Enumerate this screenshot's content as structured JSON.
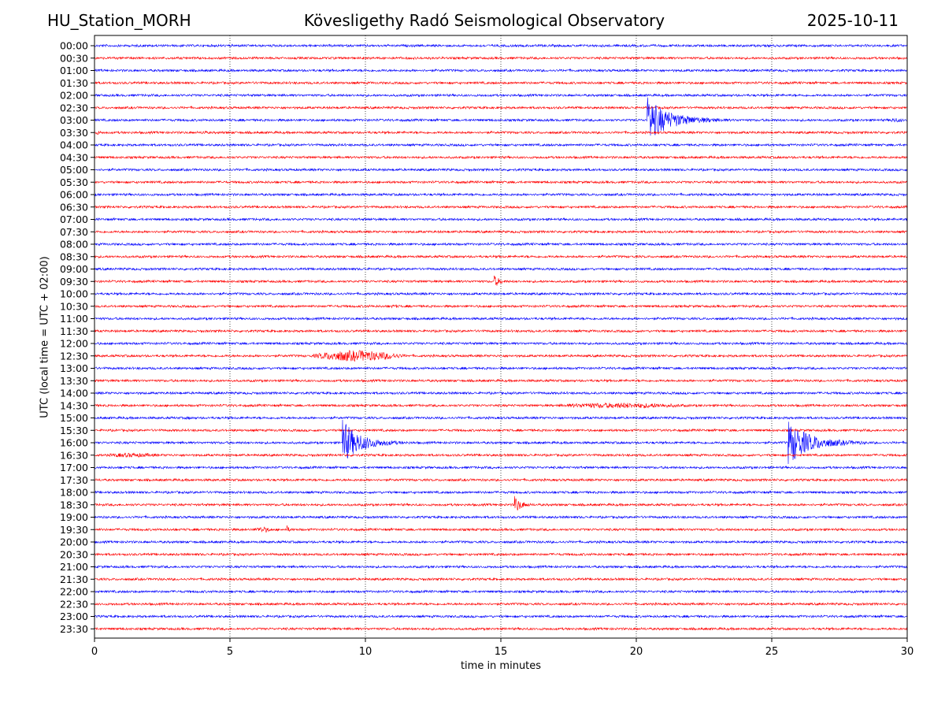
{
  "header": {
    "station": "HU_Station_MORH",
    "title": "Kövesligethy Radó Seismological Observatory",
    "date": "2025-10-11"
  },
  "chart_data": {
    "type": "line",
    "title": "Kövesligethy Radó Seismological Observatory",
    "xlabel": "time in minutes",
    "ylabel": "UTC (local time = UTC + 02:00)",
    "xlim": [
      0,
      30
    ],
    "xticks": [
      0,
      5,
      10,
      15,
      20,
      25,
      30
    ],
    "grid": "vertical dotted at 5-minute ticks",
    "row_labels": [
      "00:00",
      "00:30",
      "01:00",
      "01:30",
      "02:00",
      "02:30",
      "03:00",
      "03:30",
      "04:00",
      "04:30",
      "05:00",
      "05:30",
      "06:00",
      "06:30",
      "07:00",
      "07:30",
      "08:00",
      "08:30",
      "09:00",
      "09:30",
      "10:00",
      "10:30",
      "11:00",
      "11:30",
      "12:00",
      "12:30",
      "13:00",
      "13:30",
      "14:00",
      "14:30",
      "15:00",
      "15:30",
      "16:00",
      "16:30",
      "17:00",
      "17:30",
      "18:00",
      "18:30",
      "19:00",
      "19:30",
      "20:00",
      "20:30",
      "21:00",
      "21:30",
      "22:00",
      "22:30",
      "23:00",
      "23:30"
    ],
    "colors": [
      "#0000ff",
      "#ff0000"
    ],
    "events": [
      {
        "row": 6,
        "start_min": 20.4,
        "duration_min": 4.5,
        "peak": 30,
        "sharp": true
      },
      {
        "row": 6,
        "start_min": 29.2,
        "duration_min": 0.8,
        "peak": 4,
        "sharp": false
      },
      {
        "row": 7,
        "start_min": 0.0,
        "duration_min": 0.3,
        "peak": 4,
        "sharp": false
      },
      {
        "row": 7,
        "start_min": 3.9,
        "duration_min": 0.3,
        "peak": 4,
        "sharp": false
      },
      {
        "row": 19,
        "start_min": 14.75,
        "duration_min": 1.5,
        "peak": 8,
        "sharp": true
      },
      {
        "row": 21,
        "start_min": 10.8,
        "duration_min": 0.6,
        "peak": 3,
        "sharp": false
      },
      {
        "row": 25,
        "start_min": 7.8,
        "duration_min": 4.0,
        "peak": 10,
        "sharp": false
      },
      {
        "row": 29,
        "start_min": 16.4,
        "duration_min": 6.5,
        "peak": 5,
        "sharp": false
      },
      {
        "row": 30,
        "start_min": 3.2,
        "duration_min": 0.6,
        "peak": 3,
        "sharp": false
      },
      {
        "row": 32,
        "start_min": 9.15,
        "duration_min": 3.5,
        "peak": 30,
        "sharp": true
      },
      {
        "row": 32,
        "start_min": 25.6,
        "duration_min": 4.4,
        "peak": 30,
        "sharp": true
      },
      {
        "row": 33,
        "start_min": 0.1,
        "duration_min": 2.8,
        "peak": 4,
        "sharp": false
      },
      {
        "row": 37,
        "start_min": 15.5,
        "duration_min": 1.5,
        "peak": 12,
        "sharp": true
      },
      {
        "row": 39,
        "start_min": 5.8,
        "duration_min": 0.9,
        "peak": 5,
        "sharp": false
      },
      {
        "row": 39,
        "start_min": 7.1,
        "duration_min": 0.6,
        "peak": 6,
        "sharp": true
      }
    ]
  }
}
